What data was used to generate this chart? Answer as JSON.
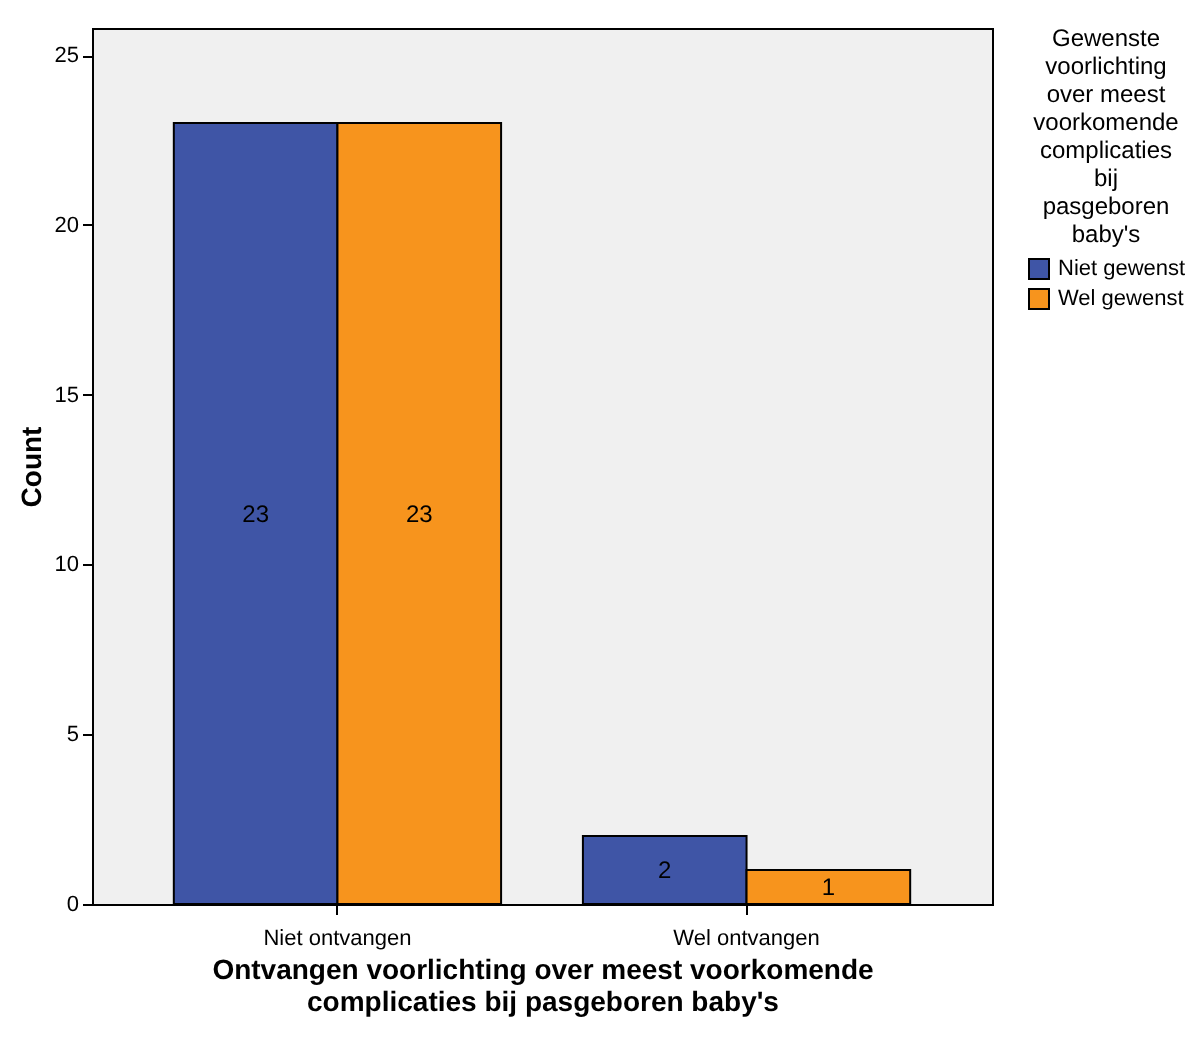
{
  "chart_data": {
    "type": "bar",
    "categories": [
      "Niet ontvangen",
      "Wel ontvangen"
    ],
    "series": [
      {
        "name": "Niet gewenst",
        "color": "#3f55a6",
        "values": [
          23,
          2
        ]
      },
      {
        "name": "Wel gewenst",
        "color": "#f7941d",
        "values": [
          23,
          1
        ]
      }
    ],
    "xlabel": "Ontvangen voorlichting over meest voorkomende complicaties bij pasgeboren baby's",
    "ylabel": "Count",
    "legend_title": "Gewenste voorlichting over meest voorkomende complicaties bij pasgeboren baby's",
    "legend": "right",
    "ylim": [
      0,
      25.8
    ],
    "yticks": [
      0,
      5,
      10,
      15,
      20,
      25
    ],
    "grid": false,
    "data_labels": true
  }
}
